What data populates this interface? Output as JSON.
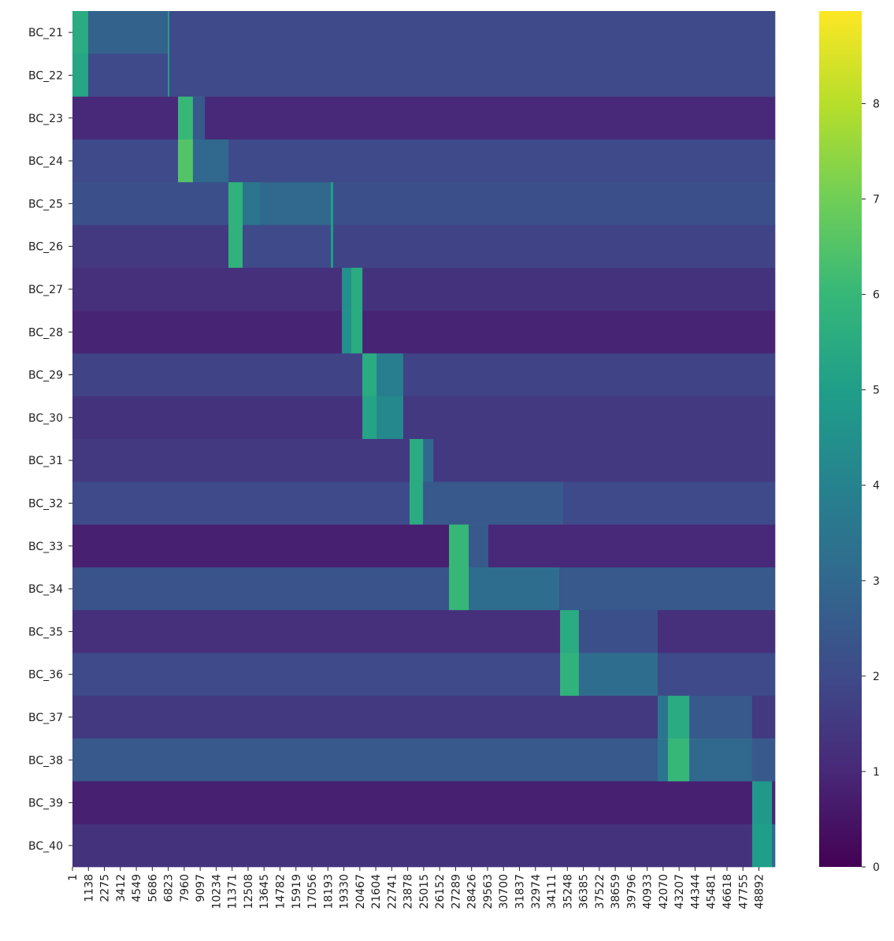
{
  "chart_data": {
    "type": "heatmap",
    "colormap": "viridis",
    "xlim": [
      1,
      50041
    ],
    "xticks": [
      1,
      1138,
      2275,
      3412,
      4549,
      5686,
      6823,
      7960,
      9097,
      10234,
      11371,
      12508,
      13645,
      14782,
      15919,
      17056,
      18193,
      19330,
      20467,
      21604,
      22741,
      23878,
      25015,
      26152,
      27289,
      28426,
      29563,
      30700,
      31837,
      32974,
      34111,
      35248,
      36385,
      37522,
      38659,
      39796,
      40933,
      42070,
      43207,
      44344,
      45481,
      46618,
      47755,
      48892
    ],
    "zlim": [
      0,
      8.97
    ],
    "zticks": [
      0,
      1,
      2,
      3,
      4,
      5,
      6,
      7,
      8
    ],
    "rows": [
      {
        "name": "BC_21",
        "edges": [
          1,
          1120,
          6790,
          6900,
          50041
        ],
        "values": [
          5.5,
          2.8,
          5,
          2
        ]
      },
      {
        "name": "BC_22",
        "edges": [
          1,
          1120,
          6790,
          6900,
          50041
        ],
        "values": [
          5.3,
          2,
          5,
          2
        ]
      },
      {
        "name": "BC_23",
        "edges": [
          1,
          7520,
          8580,
          9430,
          50041
        ],
        "values": [
          1,
          6,
          2.5,
          1
        ]
      },
      {
        "name": "BC_24",
        "edges": [
          1,
          7520,
          8580,
          11110,
          50041
        ],
        "values": [
          2,
          6.5,
          3,
          2
        ]
      },
      {
        "name": "BC_25",
        "edges": [
          1,
          11110,
          12120,
          13350,
          18400,
          18570,
          50041
        ],
        "values": [
          2.2,
          5.8,
          3.5,
          3,
          5,
          2.2
        ]
      },
      {
        "name": "BC_26",
        "edges": [
          1,
          11110,
          12120,
          18400,
          18570,
          50041
        ],
        "values": [
          1.5,
          5.8,
          2,
          5,
          1.8
        ]
      },
      {
        "name": "BC_27",
        "edges": [
          1,
          19190,
          19860,
          20650,
          50041
        ],
        "values": [
          1.2,
          4.5,
          5.5,
          1.3
        ]
      },
      {
        "name": "BC_28",
        "edges": [
          1,
          19190,
          19860,
          20650,
          50041
        ],
        "values": [
          0.9,
          4.5,
          5.5,
          0.9
        ]
      },
      {
        "name": "BC_29",
        "edges": [
          1,
          20650,
          21660,
          23560,
          50041
        ],
        "values": [
          1.8,
          5.5,
          3.8,
          1.8
        ]
      },
      {
        "name": "BC_30",
        "edges": [
          1,
          20650,
          21660,
          23560,
          50041
        ],
        "values": [
          1.3,
          5.2,
          4.2,
          1.5
        ]
      },
      {
        "name": "BC_31",
        "edges": [
          1,
          24010,
          24970,
          25700,
          50041
        ],
        "values": [
          1.5,
          5.5,
          3,
          1.5
        ]
      },
      {
        "name": "BC_32",
        "edges": [
          1,
          24010,
          24970,
          34950,
          50041
        ],
        "values": [
          2,
          5.5,
          2.5,
          2
        ]
      },
      {
        "name": "BC_33",
        "edges": [
          1,
          26820,
          28220,
          29620,
          50041
        ],
        "values": [
          0.8,
          6,
          2.5,
          1
        ]
      },
      {
        "name": "BC_34",
        "edges": [
          1,
          26820,
          28220,
          34670,
          50041
        ],
        "values": [
          2.3,
          6,
          3.2,
          2.5
        ]
      },
      {
        "name": "BC_35",
        "edges": [
          1,
          34730,
          36070,
          41680,
          50041
        ],
        "values": [
          1.2,
          5.5,
          2.2,
          1.2
        ]
      },
      {
        "name": "BC_36",
        "edges": [
          1,
          34730,
          36070,
          41680,
          50041
        ],
        "values": [
          2,
          5.8,
          3.2,
          2
        ]
      },
      {
        "name": "BC_37",
        "edges": [
          1,
          41680,
          42410,
          43930,
          48410,
          50041
        ],
        "values": [
          1.5,
          3.5,
          5.5,
          2.5,
          1.5
        ]
      },
      {
        "name": "BC_38",
        "edges": [
          1,
          41680,
          42410,
          43930,
          48410,
          50041
        ],
        "values": [
          2.5,
          3.5,
          6,
          3,
          2.5
        ]
      },
      {
        "name": "BC_39",
        "edges": [
          1,
          48410,
          49820,
          50041
        ],
        "values": [
          0.8,
          4.8,
          1
        ]
      },
      {
        "name": "BC_40",
        "edges": [
          1,
          48410,
          49820,
          50041
        ],
        "values": [
          1.3,
          5,
          3
        ]
      }
    ]
  }
}
